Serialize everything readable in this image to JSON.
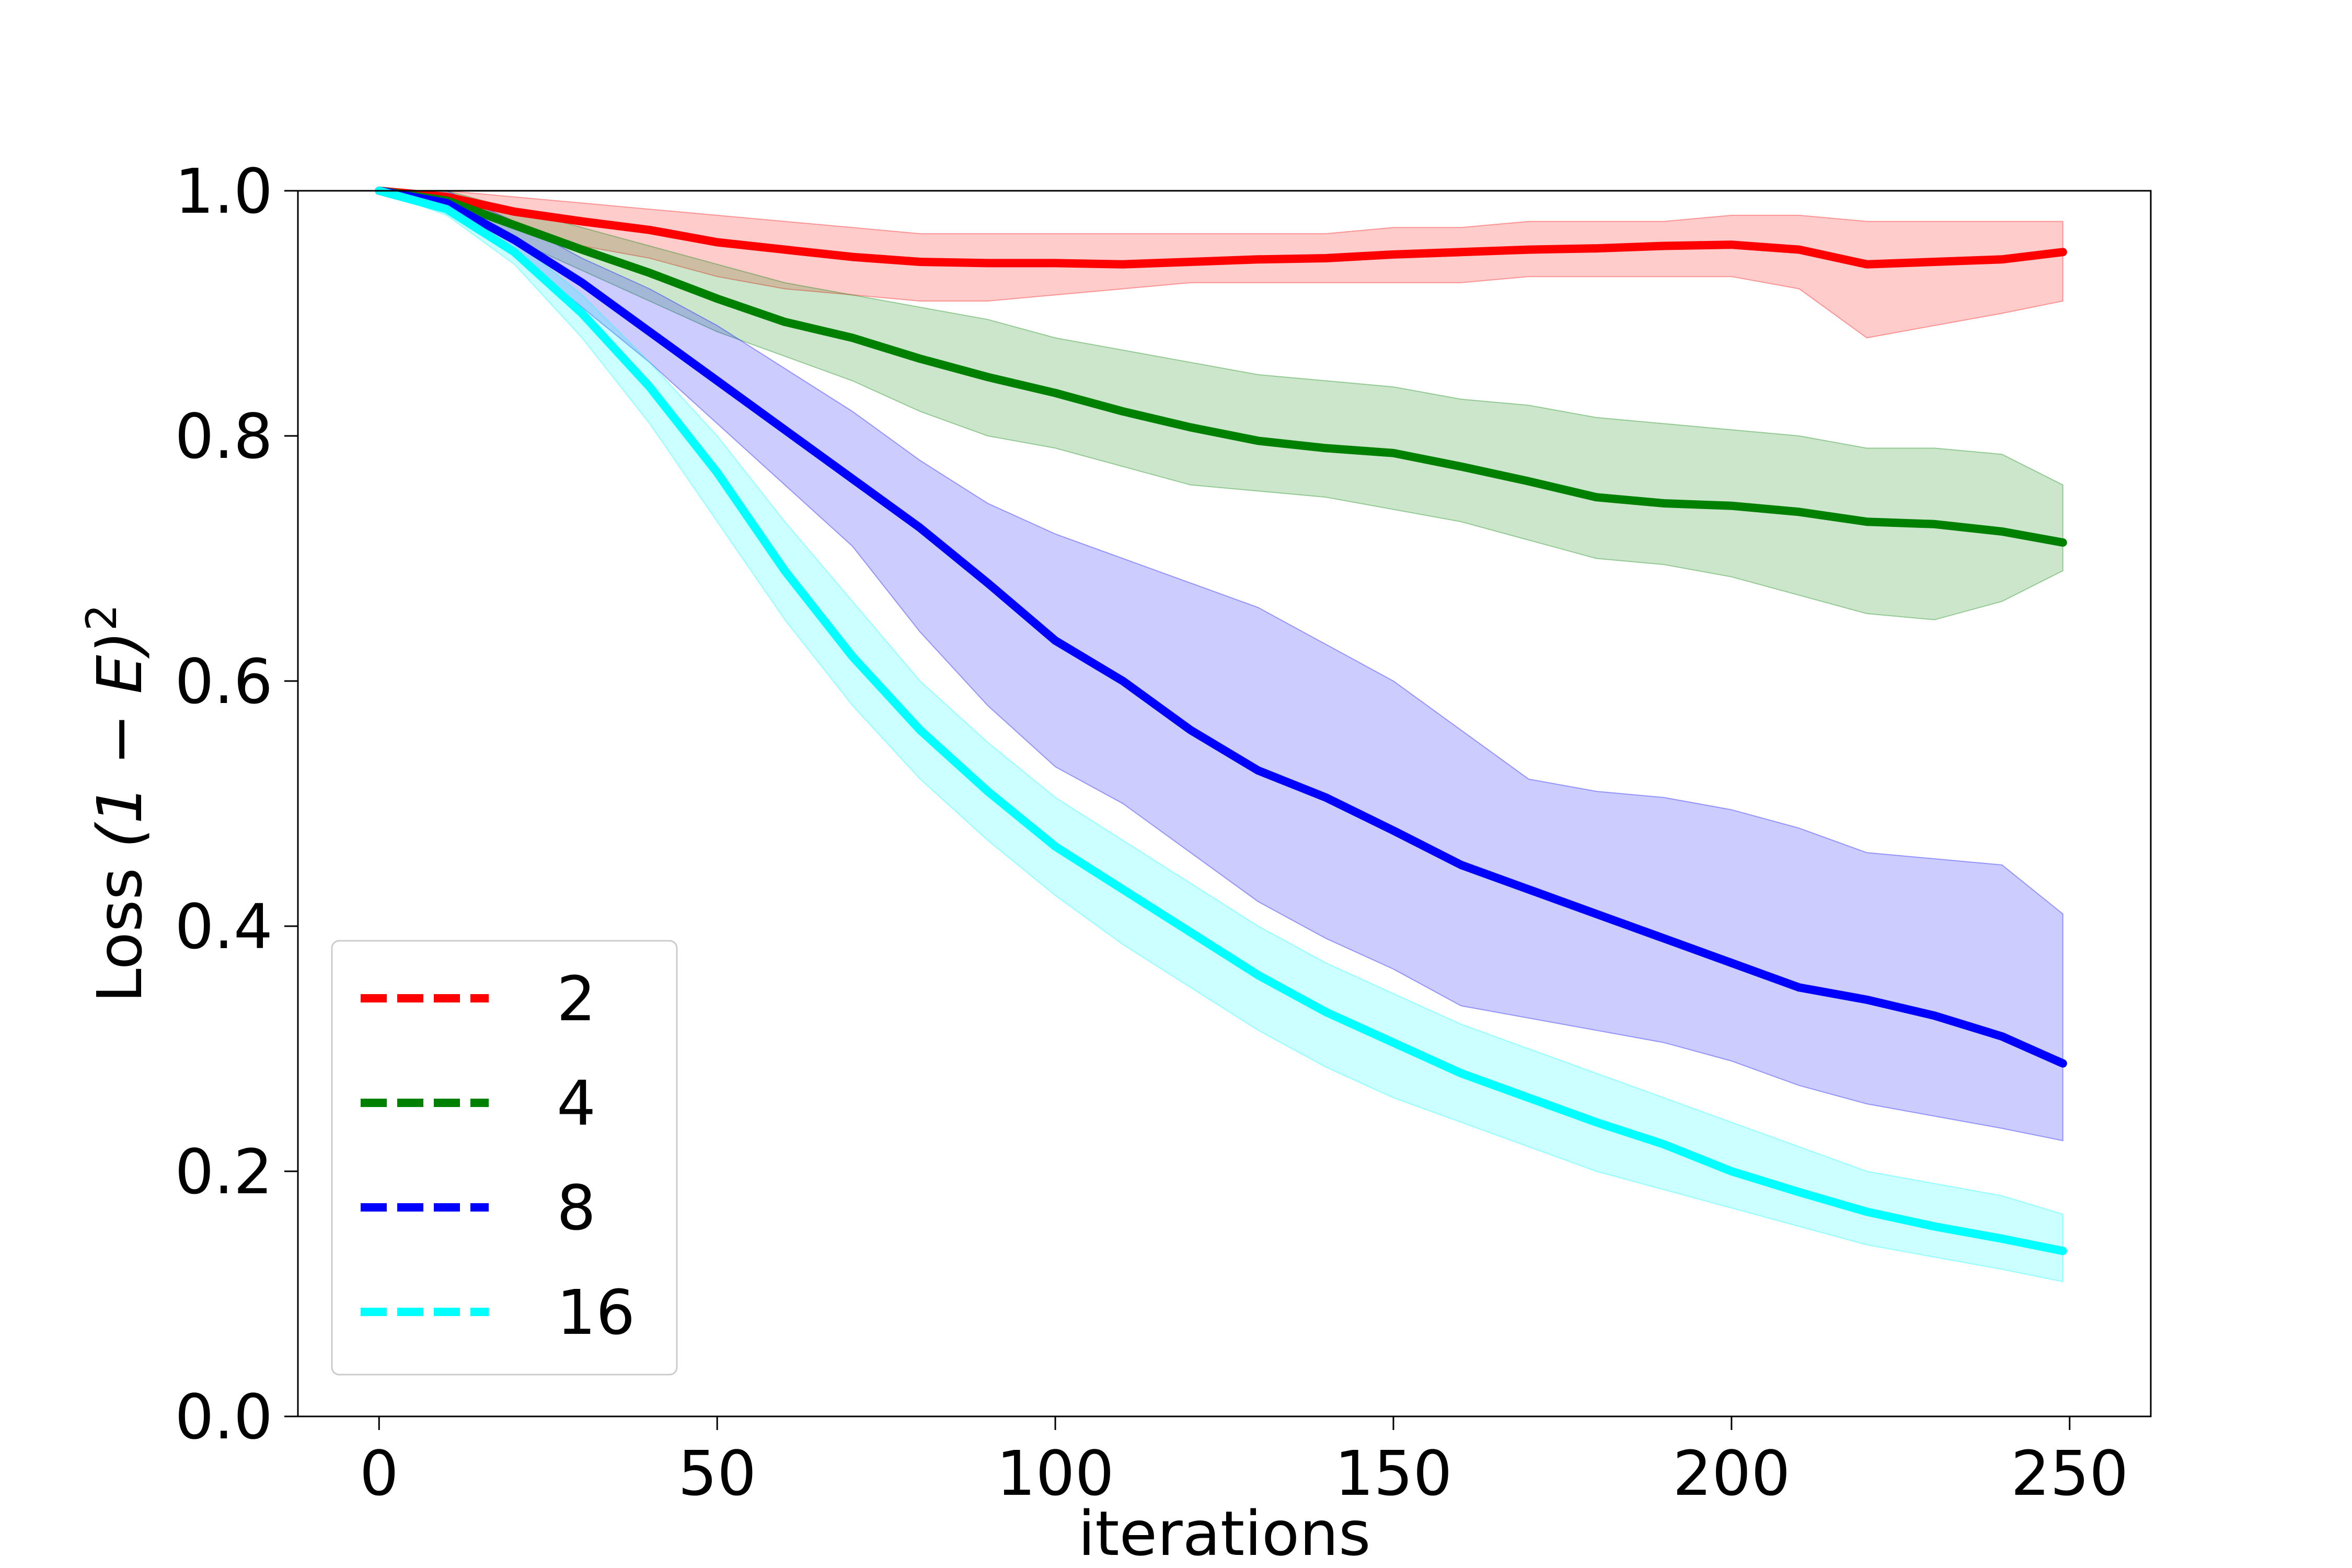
{
  "chart_data": {
    "type": "line",
    "title": "",
    "xlabel": "iterations",
    "ylabel_parts": {
      "prefix": "Loss ",
      "formula": "(1 − E)",
      "superscript": "2"
    },
    "xlim": [
      -12,
      262
    ],
    "ylim": [
      0.0,
      1.0
    ],
    "xticks": [
      0,
      50,
      100,
      150,
      200,
      250
    ],
    "yticks": [
      0.0,
      0.2,
      0.4,
      0.6,
      0.8,
      1.0
    ],
    "xtick_labels": [
      "0",
      "50",
      "100",
      "150",
      "200",
      "250"
    ],
    "ytick_labels": [
      "0.0",
      "0.2",
      "0.4",
      "0.6",
      "0.8",
      "1.0"
    ],
    "grid": false,
    "legend_position": "lower-left",
    "band_opacity": 0.2,
    "series": [
      {
        "name": "2",
        "color": "#ff0000",
        "x": [
          0,
          10,
          20,
          30,
          40,
          50,
          60,
          70,
          80,
          90,
          100,
          110,
          120,
          130,
          140,
          150,
          160,
          170,
          180,
          190,
          200,
          210,
          220,
          230,
          240,
          249
        ],
        "mean": [
          1.0,
          0.995,
          0.983,
          0.975,
          0.968,
          0.958,
          0.952,
          0.946,
          0.942,
          0.941,
          0.941,
          0.94,
          0.942,
          0.944,
          0.945,
          0.948,
          0.95,
          0.952,
          0.953,
          0.955,
          0.956,
          0.952,
          0.94,
          0.942,
          0.944,
          0.95
        ],
        "lower": [
          1.0,
          0.99,
          0.97,
          0.955,
          0.945,
          0.93,
          0.92,
          0.915,
          0.91,
          0.91,
          0.915,
          0.92,
          0.925,
          0.925,
          0.925,
          0.925,
          0.925,
          0.93,
          0.93,
          0.93,
          0.93,
          0.92,
          0.88,
          0.89,
          0.9,
          0.91
        ],
        "upper": [
          1.0,
          1.0,
          0.995,
          0.99,
          0.985,
          0.98,
          0.975,
          0.97,
          0.965,
          0.965,
          0.965,
          0.965,
          0.965,
          0.965,
          0.965,
          0.97,
          0.97,
          0.975,
          0.975,
          0.975,
          0.98,
          0.98,
          0.975,
          0.975,
          0.975,
          0.975
        ]
      },
      {
        "name": "4",
        "color": "#008000",
        "x": [
          0,
          10,
          20,
          30,
          40,
          50,
          60,
          70,
          80,
          90,
          100,
          110,
          120,
          130,
          140,
          150,
          160,
          170,
          180,
          190,
          200,
          210,
          220,
          230,
          240,
          249
        ],
        "mean": [
          1.0,
          0.992,
          0.972,
          0.952,
          0.933,
          0.912,
          0.893,
          0.88,
          0.863,
          0.848,
          0.835,
          0.82,
          0.807,
          0.796,
          0.79,
          0.786,
          0.775,
          0.763,
          0.75,
          0.745,
          0.743,
          0.738,
          0.73,
          0.728,
          0.722,
          0.713
        ],
        "lower": [
          1.0,
          0.985,
          0.96,
          0.935,
          0.91,
          0.885,
          0.865,
          0.845,
          0.82,
          0.8,
          0.79,
          0.775,
          0.76,
          0.755,
          0.75,
          0.74,
          0.73,
          0.715,
          0.7,
          0.695,
          0.685,
          0.67,
          0.655,
          0.65,
          0.665,
          0.69
        ],
        "upper": [
          1.0,
          1.0,
          0.985,
          0.97,
          0.955,
          0.94,
          0.925,
          0.915,
          0.905,
          0.895,
          0.88,
          0.87,
          0.86,
          0.85,
          0.845,
          0.84,
          0.83,
          0.825,
          0.815,
          0.81,
          0.805,
          0.8,
          0.79,
          0.79,
          0.785,
          0.76
        ]
      },
      {
        "name": "8",
        "color": "#0000ff",
        "x": [
          0,
          10,
          20,
          30,
          40,
          50,
          60,
          70,
          80,
          90,
          100,
          110,
          120,
          130,
          140,
          150,
          160,
          170,
          180,
          190,
          200,
          210,
          220,
          230,
          240,
          249
        ],
        "mean": [
          1.0,
          0.99,
          0.96,
          0.925,
          0.885,
          0.845,
          0.805,
          0.765,
          0.725,
          0.68,
          0.633,
          0.6,
          0.56,
          0.527,
          0.505,
          0.478,
          0.45,
          0.43,
          0.41,
          0.39,
          0.37,
          0.35,
          0.34,
          0.327,
          0.31,
          0.288
        ],
        "lower": [
          1.0,
          0.985,
          0.95,
          0.905,
          0.86,
          0.81,
          0.76,
          0.71,
          0.64,
          0.58,
          0.53,
          0.5,
          0.46,
          0.42,
          0.39,
          0.365,
          0.335,
          0.325,
          0.315,
          0.305,
          0.29,
          0.27,
          0.255,
          0.245,
          0.235,
          0.225
        ],
        "upper": [
          1.0,
          1.0,
          0.975,
          0.945,
          0.92,
          0.89,
          0.855,
          0.82,
          0.78,
          0.745,
          0.72,
          0.7,
          0.68,
          0.66,
          0.63,
          0.6,
          0.56,
          0.52,
          0.51,
          0.505,
          0.495,
          0.48,
          0.46,
          0.455,
          0.45,
          0.41
        ]
      },
      {
        "name": "16",
        "color": "#00ffff",
        "x": [
          0,
          10,
          20,
          30,
          40,
          50,
          60,
          70,
          80,
          90,
          100,
          110,
          120,
          130,
          140,
          150,
          160,
          170,
          180,
          190,
          200,
          210,
          220,
          230,
          240,
          249
        ],
        "mean": [
          1.0,
          0.985,
          0.95,
          0.9,
          0.84,
          0.77,
          0.69,
          0.62,
          0.56,
          0.51,
          0.465,
          0.43,
          0.395,
          0.36,
          0.33,
          0.305,
          0.28,
          0.26,
          0.24,
          0.222,
          0.2,
          0.183,
          0.167,
          0.155,
          0.145,
          0.135
        ],
        "lower": [
          1.0,
          0.98,
          0.94,
          0.88,
          0.81,
          0.73,
          0.65,
          0.58,
          0.52,
          0.47,
          0.425,
          0.385,
          0.35,
          0.315,
          0.285,
          0.26,
          0.24,
          0.22,
          0.2,
          0.185,
          0.17,
          0.155,
          0.14,
          0.13,
          0.12,
          0.11
        ],
        "upper": [
          1.0,
          0.99,
          0.96,
          0.915,
          0.86,
          0.8,
          0.73,
          0.665,
          0.6,
          0.55,
          0.505,
          0.47,
          0.435,
          0.4,
          0.37,
          0.345,
          0.32,
          0.3,
          0.28,
          0.26,
          0.24,
          0.22,
          0.2,
          0.19,
          0.18,
          0.165
        ]
      }
    ]
  }
}
